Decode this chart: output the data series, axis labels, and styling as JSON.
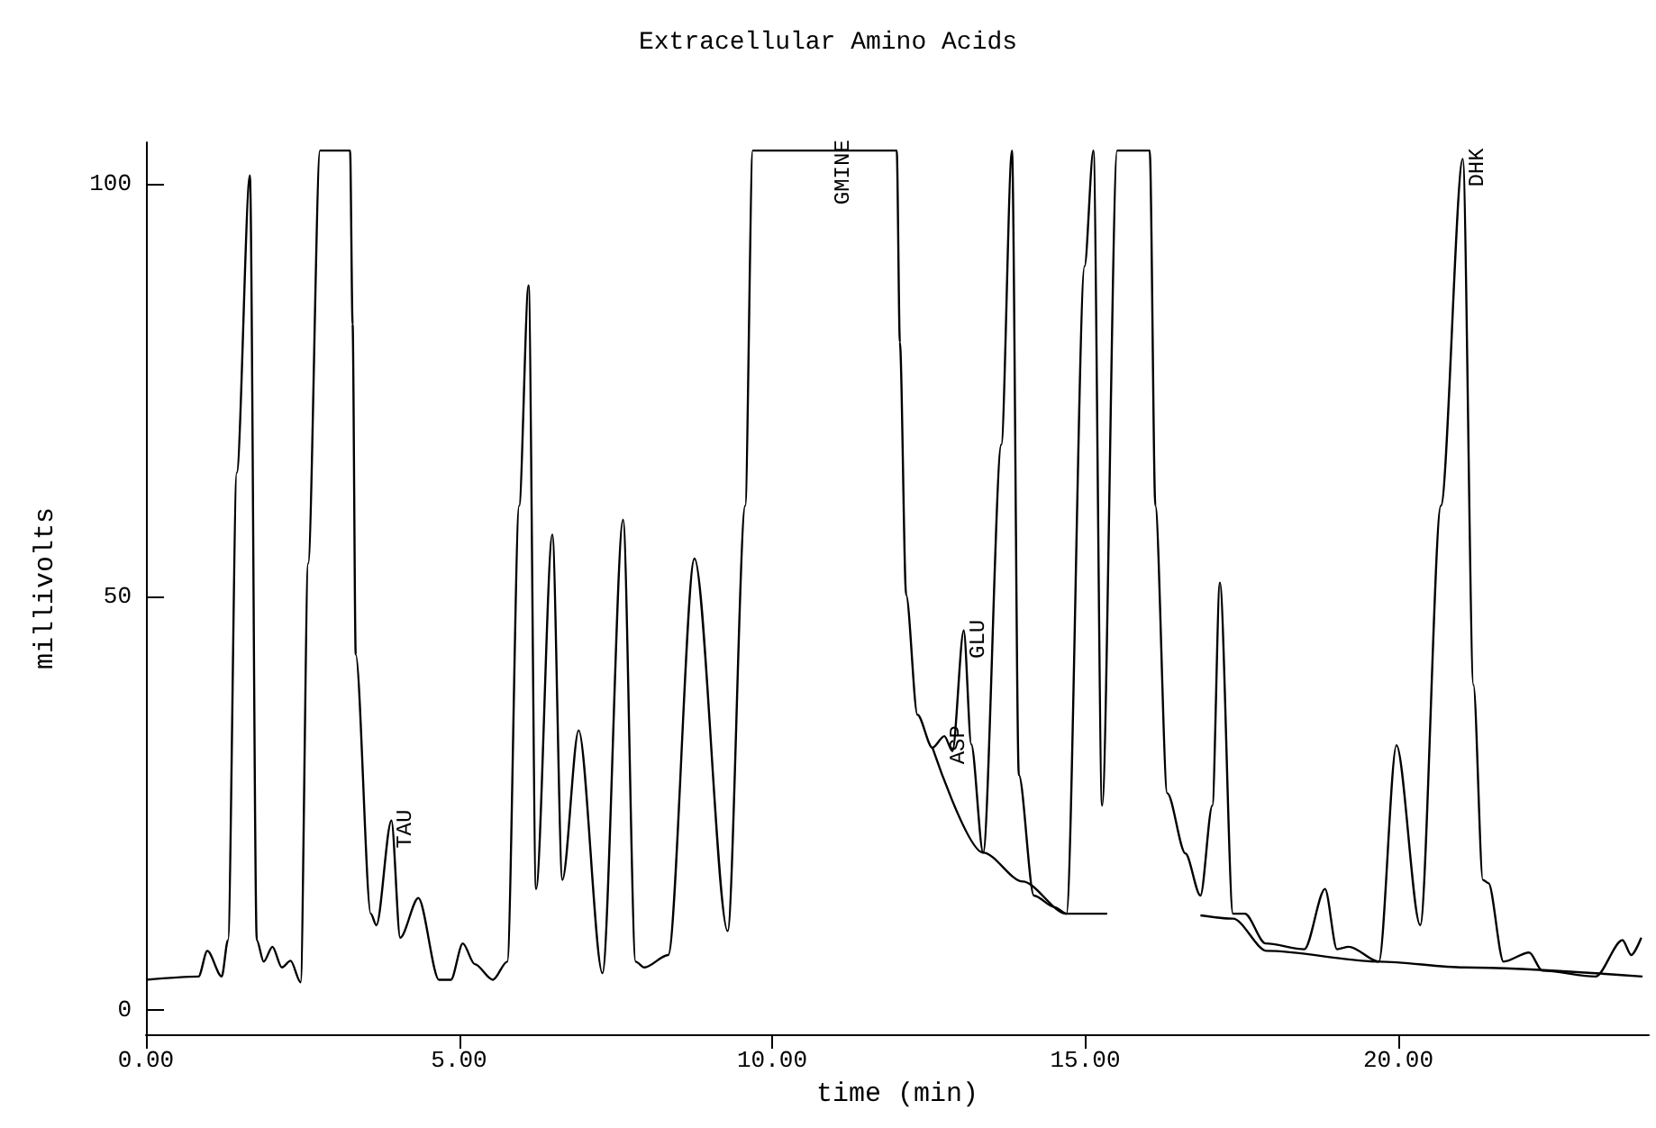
{
  "chart_data": {
    "type": "line",
    "title": "Extracellular Amino Acids",
    "xlabel": "time (min)",
    "ylabel": "millivolts",
    "xlim": [
      0,
      24
    ],
    "ylim": [
      -3,
      105
    ],
    "xticks": [
      {
        "value": 0,
        "label": "0.00"
      },
      {
        "value": 5,
        "label": "5.00"
      },
      {
        "value": 10,
        "label": "10.00"
      },
      {
        "value": 15,
        "label": "15.00"
      },
      {
        "value": 20,
        "label": "20.00"
      }
    ],
    "yticks": [
      0,
      50,
      100
    ],
    "marker": "none",
    "line_style": "solid",
    "series": [
      {
        "color": "#000000",
        "x": [
          0,
          0.84,
          0.98,
          1.21,
          1.31,
          1.45,
          1.66,
          1.77,
          1.88,
          2.02,
          2.17,
          2.31,
          2.47,
          2.59,
          2.78,
          3.26,
          3.3,
          3.35,
          3.59,
          3.68,
          3.92,
          4.06,
          4.35,
          4.68,
          4.87,
          5.06,
          5.25,
          5.54,
          5.77,
          5.96,
          6.11,
          6.23,
          6.49,
          6.65,
          6.91,
          7.29,
          7.62,
          7.82,
          7.96,
          8.34,
          8.76,
          9.29,
          9.57,
          9.69,
          11.99,
          12.04,
          12.14,
          12.32,
          12.56,
          12.75,
          12.88,
          13.06,
          13.18,
          13.37,
          13.66,
          13.83,
          13.94,
          14.18,
          14.51,
          14.7,
          14.99,
          15.13,
          15.27,
          15.51,
          16.03,
          16.12,
          16.31,
          16.6,
          16.84,
          17.03,
          17.15,
          17.36,
          17.55,
          17.88,
          18.5,
          18.83,
          19.02,
          19.21,
          19.69,
          19.97,
          20.35,
          20.68,
          21.03,
          21.2,
          21.35,
          21.44,
          21.68,
          22.09,
          22.3,
          23.15,
          23.58,
          23.72,
          23.88
        ],
        "values": [
          3.6,
          4,
          7.1,
          4,
          8.4,
          65,
          101,
          8.4,
          5.8,
          7.6,
          5.1,
          5.9,
          3.3,
          54,
          104,
          104,
          83,
          43,
          11.6,
          10.2,
          22.9,
          8.7,
          13.5,
          3.6,
          3.6,
          8,
          5.5,
          3.6,
          5.8,
          61,
          87.7,
          14.6,
          57.5,
          15.7,
          33.8,
          4.4,
          59.3,
          5.8,
          5.1,
          6.6,
          54.6,
          9.5,
          61,
          104,
          104,
          80.8,
          50.2,
          35.7,
          31.7,
          33.1,
          31.3,
          45.9,
          32.1,
          19,
          68.4,
          104,
          28.4,
          13.8,
          12.4,
          11.6,
          90,
          104,
          24.7,
          104,
          104,
          61,
          26.2,
          18.9,
          13.8,
          24.7,
          51.7,
          11.6,
          11.6,
          8,
          7.3,
          14.6,
          7.3,
          7.6,
          5.8,
          32,
          10.2,
          61,
          103,
          39.3,
          15.7,
          15.3,
          5.8,
          6.9,
          4.7,
          4,
          8.4,
          6.6,
          8.7
        ]
      },
      {
        "color": "#000000",
        "x": [
          12.56,
          13.37,
          14.0,
          14.7,
          15.35,
          16.8,
          16.84,
          17.36,
          17.9,
          19.7,
          21.05,
          23.9
        ],
        "values": [
          31.7,
          19,
          15.5,
          11.6,
          11.6,
          null,
          11.4,
          11,
          7.1,
          5.8,
          5.1,
          4
        ]
      }
    ],
    "annotations": [
      {
        "text": "TAU",
        "x": 3.92,
        "y": 22.9
      },
      {
        "text": "GMINE",
        "x": 10.9,
        "y": 104
      },
      {
        "text": "ASP",
        "x": 12.75,
        "y": 33.1
      },
      {
        "text": "GLU",
        "x": 13.06,
        "y": 45.9
      },
      {
        "text": "DHK",
        "x": 21.03,
        "y": 103
      }
    ]
  }
}
